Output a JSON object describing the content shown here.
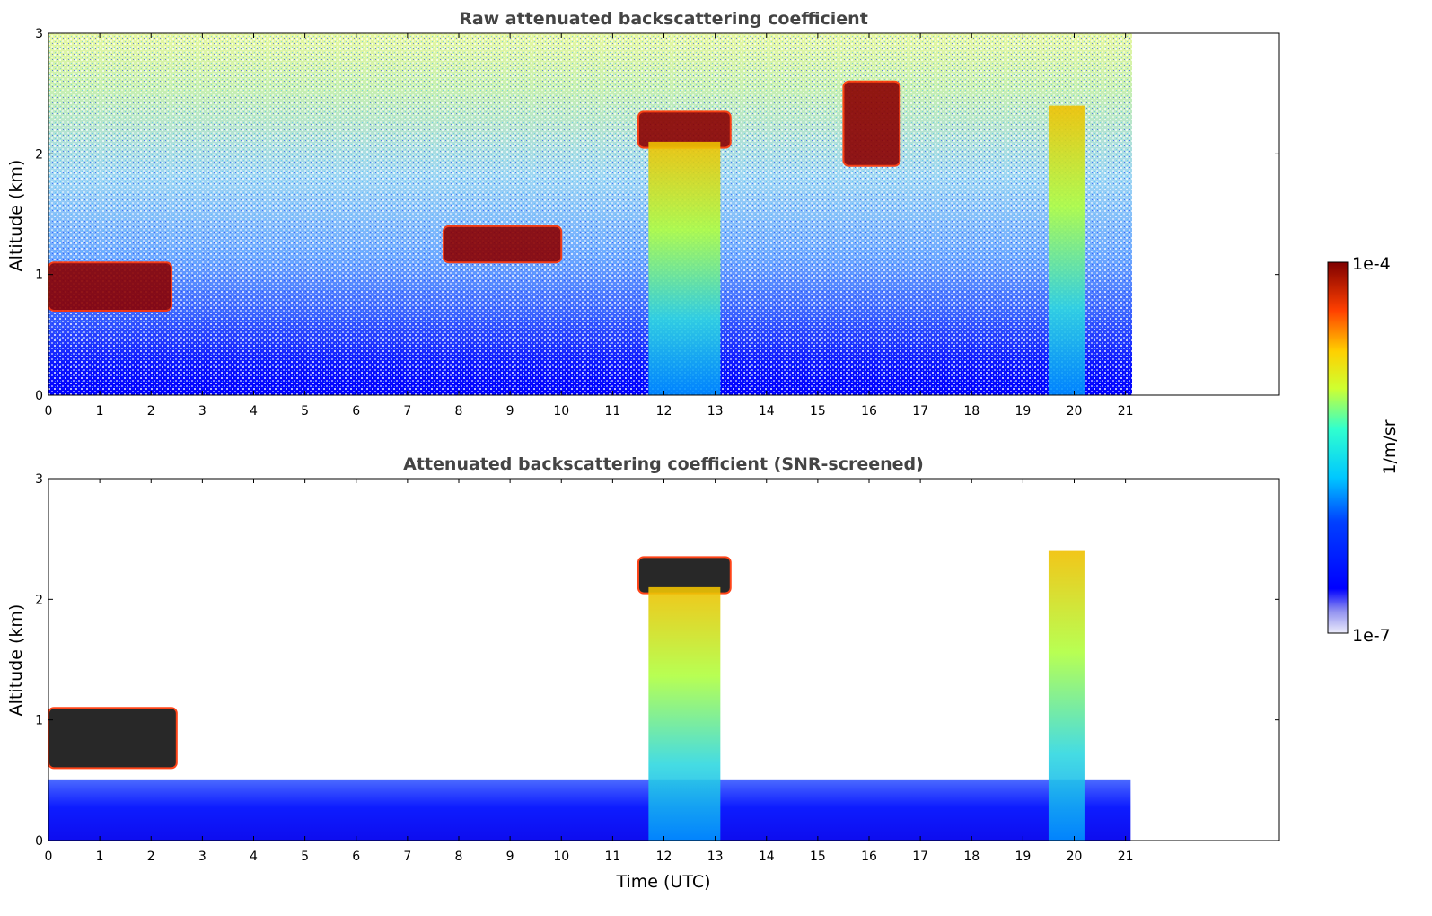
{
  "chart_data": [
    {
      "type": "heatmap",
      "title": "Raw attenuated backscattering coefficient",
      "xlabel": "",
      "ylabel": "Altitude (km)",
      "xlim": [
        0,
        24
      ],
      "ylim": [
        0,
        3
      ],
      "x_ticks": [
        "0",
        "1",
        "2",
        "3",
        "4",
        "5",
        "6",
        "7",
        "8",
        "9",
        "10",
        "11",
        "12",
        "13",
        "14",
        "15",
        "16",
        "17",
        "18",
        "19",
        "20",
        "21"
      ],
      "y_ticks": [
        "0",
        "1",
        "2",
        "3"
      ],
      "data_extent_hours": [
        0,
        21.1
      ],
      "features": [
        {
          "kind": "boundary-layer-cloud",
          "x": [
            0,
            2.4
          ],
          "y": [
            0.7,
            1.1
          ]
        },
        {
          "kind": "cloud-layer",
          "x": [
            7.7,
            10.0
          ],
          "y": [
            1.1,
            1.4
          ]
        },
        {
          "kind": "cloud-layer",
          "x": [
            11.5,
            13.3
          ],
          "y": [
            2.05,
            2.35
          ]
        },
        {
          "kind": "precipitation-fallstreak",
          "x": [
            11.7,
            13.1
          ],
          "y": [
            0,
            2.1
          ]
        },
        {
          "kind": "precipitation-fallstreak",
          "x": [
            19.5,
            20.2
          ],
          "y": [
            0,
            2.4
          ]
        },
        {
          "kind": "cloud-layer",
          "x": [
            15.5,
            16.6
          ],
          "y": [
            1.9,
            2.6
          ]
        }
      ]
    },
    {
      "type": "heatmap",
      "title": "Attenuated backscattering coefficient (SNR-screened)",
      "xlabel": "Time (UTC)",
      "ylabel": "Altitude (km)",
      "xlim": [
        0,
        24
      ],
      "ylim": [
        0,
        3
      ],
      "x_ticks": [
        "0",
        "1",
        "2",
        "3",
        "4",
        "5",
        "6",
        "7",
        "8",
        "9",
        "10",
        "11",
        "12",
        "13",
        "14",
        "15",
        "16",
        "17",
        "18",
        "19",
        "20",
        "21"
      ],
      "y_ticks": [
        "0",
        "1",
        "2",
        "3"
      ],
      "data_extent_hours": [
        0,
        21.1
      ],
      "features": [
        {
          "kind": "boundary-layer-cloud",
          "x": [
            0,
            2.5
          ],
          "y": [
            0.6,
            1.1
          ]
        },
        {
          "kind": "aerosol-layer",
          "x": [
            0,
            21.1
          ],
          "y": [
            0,
            0.5
          ]
        },
        {
          "kind": "cloud-layer",
          "x": [
            11.5,
            13.3
          ],
          "y": [
            2.05,
            2.35
          ]
        },
        {
          "kind": "precipitation-fallstreak",
          "x": [
            11.7,
            13.1
          ],
          "y": [
            0,
            2.1
          ]
        },
        {
          "kind": "precipitation-fallstreak",
          "x": [
            19.5,
            20.2
          ],
          "y": [
            0,
            2.4
          ]
        }
      ]
    }
  ],
  "colorbar": {
    "max_label": "1e-4",
    "min_label": "1e-7",
    "unit_label": "1/m/sr",
    "colormap": "jet",
    "min_value": 1e-07,
    "max_value": 0.0001
  }
}
